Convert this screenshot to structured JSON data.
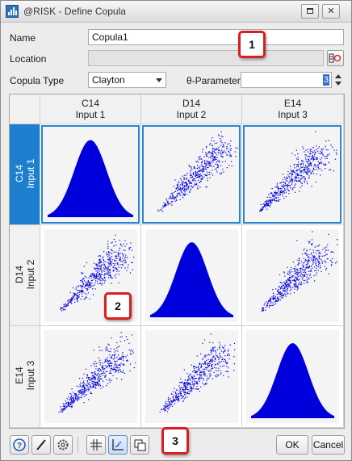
{
  "window": {
    "title": "@RISK - Define Copula"
  },
  "form": {
    "name_label": "Name",
    "name_value": "Copula1",
    "location_label": "Location",
    "location_value": "",
    "copula_type_label": "Copula Type",
    "copula_type_value": "Clayton",
    "theta_label": "θ-Parameter",
    "theta_value": "3"
  },
  "matrix": {
    "columns": [
      {
        "cell": "C14",
        "name": "Input 1"
      },
      {
        "cell": "D14",
        "name": "Input 2"
      },
      {
        "cell": "E14",
        "name": "Input 3"
      }
    ],
    "rows": [
      {
        "cell": "C14",
        "name": "Input 1",
        "selected": true
      },
      {
        "cell": "D14",
        "name": "Input 2",
        "selected": false
      },
      {
        "cell": "E14",
        "name": "Input 3",
        "selected": false
      }
    ],
    "plot_color": "#0000dd",
    "selection_color": "#2a84d2"
  },
  "callouts": [
    "1",
    "2",
    "3"
  ],
  "footer": {
    "icons": [
      "help-icon",
      "pen-icon",
      "gear-icon",
      "grid-icon",
      "scatter-view-icon",
      "copy-windows-icon"
    ],
    "ok_label": "OK",
    "cancel_label": "Cancel"
  }
}
